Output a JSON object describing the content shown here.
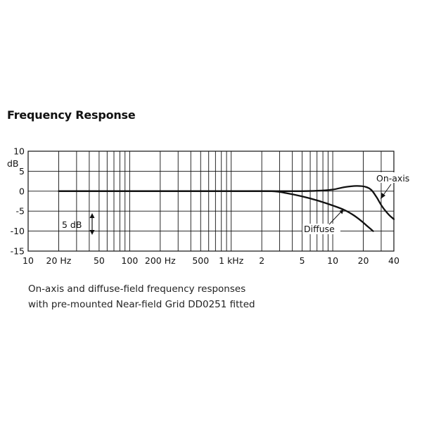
{
  "title": "Frequency Response",
  "caption": {
    "line1": "On-axis and diffuse-field frequency responses",
    "line2": "with pre-mounted Near-field Grid DD0251 fitted"
  },
  "chart_data": {
    "type": "line",
    "x_scale": "log",
    "xlim_khz": [
      0.01,
      40
    ],
    "ylim": [
      -15,
      10
    ],
    "y_unit": "dB",
    "grid": true,
    "x_ticks": [
      {
        "khz": 0.01,
        "label": "10"
      },
      {
        "khz": 0.02,
        "label": "20  Hz"
      },
      {
        "khz": 0.05,
        "label": "50"
      },
      {
        "khz": 0.1,
        "label": "100"
      },
      {
        "khz": 0.2,
        "label": "200 Hz"
      },
      {
        "khz": 0.5,
        "label": "500"
      },
      {
        "khz": 1,
        "label": "1 kHz"
      },
      {
        "khz": 2,
        "label": "2"
      },
      {
        "khz": 5,
        "label": "5"
      },
      {
        "khz": 10,
        "label": "10"
      },
      {
        "khz": 20,
        "label": "20"
      },
      {
        "khz": 40,
        "label": "40"
      }
    ],
    "y_ticks": [
      10,
      5,
      0,
      -5,
      -10,
      -15
    ],
    "series": [
      {
        "name": "On-axis",
        "points": [
          [
            0.02,
            0
          ],
          [
            0.1,
            0
          ],
          [
            1,
            0
          ],
          [
            3,
            0
          ],
          [
            5,
            0
          ],
          [
            7,
            0.1
          ],
          [
            10,
            0.4
          ],
          [
            13,
            1.0
          ],
          [
            17,
            1.3
          ],
          [
            21,
            1.1
          ],
          [
            24,
            0.3
          ],
          [
            27,
            -1.5
          ],
          [
            31,
            -4
          ],
          [
            36,
            -6
          ],
          [
            40,
            -7
          ]
        ]
      },
      {
        "name": "Diffuse",
        "points": [
          [
            0.02,
            0
          ],
          [
            0.1,
            0
          ],
          [
            1,
            0
          ],
          [
            2.5,
            0
          ],
          [
            3.5,
            -0.5
          ],
          [
            5,
            -1.3
          ],
          [
            7,
            -2.3
          ],
          [
            10,
            -3.6
          ],
          [
            13,
            -4.7
          ],
          [
            16,
            -6.0
          ],
          [
            19,
            -7.4
          ],
          [
            22,
            -8.8
          ],
          [
            25,
            -10.0
          ]
        ]
      }
    ],
    "annotations": {
      "ylabel": "dB",
      "scale_bar": "5 dB",
      "on_axis_label": "On-axis",
      "diffuse_label": "Diffuse"
    }
  }
}
